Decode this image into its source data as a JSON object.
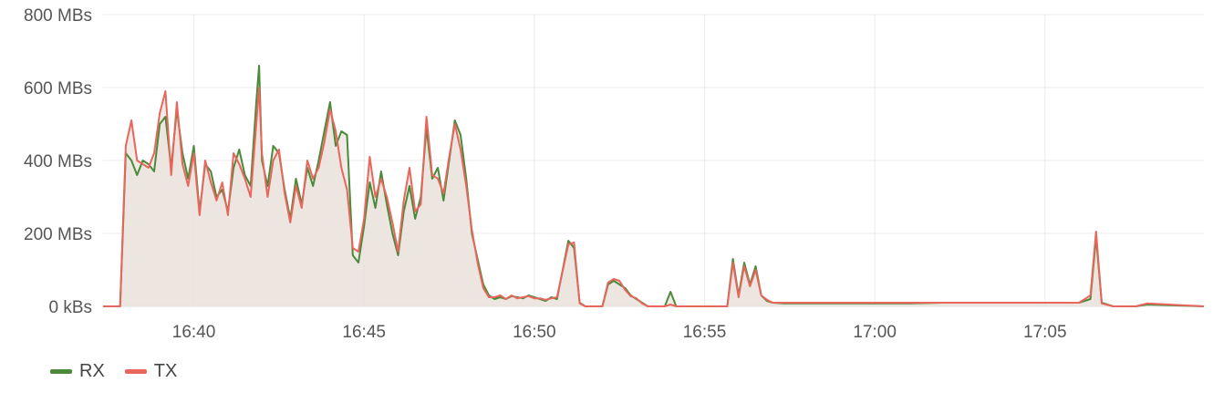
{
  "chart_data": {
    "type": "area",
    "title": "",
    "xlabel": "",
    "ylabel": "",
    "x_start": "16:37:20",
    "x_end": "17:09:40",
    "ylim": [
      0,
      800
    ],
    "y_ticks": [
      {
        "value": 0,
        "label": "0 kBs"
      },
      {
        "value": 200,
        "label": "200 MBs"
      },
      {
        "value": 400,
        "label": "400 MBs"
      },
      {
        "value": 600,
        "label": "600 MBs"
      },
      {
        "value": 800,
        "label": "800 MBs"
      }
    ],
    "x_ticks": [
      "16:40",
      "16:45",
      "16:50",
      "16:55",
      "17:00",
      "17:05"
    ],
    "grid": true,
    "legend_position": "bottom-left",
    "series": [
      {
        "name": "RX",
        "color": "#4a8a3a",
        "points": [
          [
            "16:37:20",
            0
          ],
          [
            "16:37:50",
            0
          ],
          [
            "16:38:00",
            420
          ],
          [
            "16:38:10",
            400
          ],
          [
            "16:38:20",
            360
          ],
          [
            "16:38:30",
            400
          ],
          [
            "16:38:40",
            390
          ],
          [
            "16:38:50",
            370
          ],
          [
            "16:39:00",
            500
          ],
          [
            "16:39:10",
            520
          ],
          [
            "16:39:20",
            380
          ],
          [
            "16:39:30",
            540
          ],
          [
            "16:39:40",
            420
          ],
          [
            "16:39:50",
            350
          ],
          [
            "16:40:00",
            440
          ],
          [
            "16:40:10",
            260
          ],
          [
            "16:40:20",
            390
          ],
          [
            "16:40:30",
            370
          ],
          [
            "16:40:40",
            300
          ],
          [
            "16:40:50",
            320
          ],
          [
            "16:41:00",
            260
          ],
          [
            "16:41:10",
            380
          ],
          [
            "16:41:20",
            430
          ],
          [
            "16:41:30",
            360
          ],
          [
            "16:41:40",
            330
          ],
          [
            "16:41:50",
            560
          ],
          [
            "16:41:55",
            660
          ],
          [
            "16:42:00",
            400
          ],
          [
            "16:42:10",
            330
          ],
          [
            "16:42:20",
            440
          ],
          [
            "16:42:30",
            420
          ],
          [
            "16:42:40",
            320
          ],
          [
            "16:42:50",
            240
          ],
          [
            "16:43:00",
            350
          ],
          [
            "16:43:10",
            280
          ],
          [
            "16:43:20",
            380
          ],
          [
            "16:43:30",
            330
          ],
          [
            "16:43:40",
            400
          ],
          [
            "16:43:50",
            480
          ],
          [
            "16:44:00",
            560
          ],
          [
            "16:44:10",
            440
          ],
          [
            "16:44:20",
            480
          ],
          [
            "16:44:30",
            470
          ],
          [
            "16:44:40",
            140
          ],
          [
            "16:44:50",
            120
          ],
          [
            "16:45:00",
            220
          ],
          [
            "16:45:10",
            340
          ],
          [
            "16:45:20",
            270
          ],
          [
            "16:45:30",
            370
          ],
          [
            "16:45:40",
            280
          ],
          [
            "16:45:50",
            200
          ],
          [
            "16:46:00",
            140
          ],
          [
            "16:46:10",
            260
          ],
          [
            "16:46:20",
            330
          ],
          [
            "16:46:30",
            240
          ],
          [
            "16:46:40",
            300
          ],
          [
            "16:46:50",
            490
          ],
          [
            "16:47:00",
            350
          ],
          [
            "16:47:10",
            380
          ],
          [
            "16:47:20",
            290
          ],
          [
            "16:47:30",
            400
          ],
          [
            "16:47:40",
            510
          ],
          [
            "16:47:50",
            470
          ],
          [
            "16:48:00",
            350
          ],
          [
            "16:48:10",
            200
          ],
          [
            "16:48:20",
            130
          ],
          [
            "16:48:30",
            60
          ],
          [
            "16:48:40",
            30
          ],
          [
            "16:48:50",
            20
          ],
          [
            "16:49:00",
            25
          ],
          [
            "16:49:10",
            20
          ],
          [
            "16:49:20",
            28
          ],
          [
            "16:49:30",
            25
          ],
          [
            "16:49:40",
            22
          ],
          [
            "16:49:50",
            30
          ],
          [
            "16:50:00",
            25
          ],
          [
            "16:50:10",
            20
          ],
          [
            "16:50:20",
            15
          ],
          [
            "16:50:30",
            25
          ],
          [
            "16:50:40",
            20
          ],
          [
            "16:51:00",
            180
          ],
          [
            "16:51:10",
            160
          ],
          [
            "16:51:20",
            10
          ],
          [
            "16:51:30",
            0
          ],
          [
            "16:52:00",
            0
          ],
          [
            "16:52:10",
            60
          ],
          [
            "16:52:20",
            70
          ],
          [
            "16:52:30",
            60
          ],
          [
            "16:52:40",
            50
          ],
          [
            "16:52:50",
            30
          ],
          [
            "16:53:00",
            20
          ],
          [
            "16:53:10",
            10
          ],
          [
            "16:53:20",
            0
          ],
          [
            "16:53:50",
            0
          ],
          [
            "16:54:00",
            40
          ],
          [
            "16:54:10",
            0
          ],
          [
            "16:55:40",
            0
          ],
          [
            "16:55:50",
            130
          ],
          [
            "16:56:00",
            30
          ],
          [
            "16:56:10",
            120
          ],
          [
            "16:56:20",
            60
          ],
          [
            "16:56:30",
            110
          ],
          [
            "16:56:40",
            30
          ],
          [
            "16:56:50",
            15
          ],
          [
            "16:57:00",
            10
          ],
          [
            "16:57:20",
            8
          ],
          [
            "16:58:00",
            8
          ],
          [
            "16:59:00",
            8
          ],
          [
            "17:00:00",
            8
          ],
          [
            "17:01:00",
            8
          ],
          [
            "17:02:00",
            10
          ],
          [
            "17:03:00",
            10
          ],
          [
            "17:04:00",
            10
          ],
          [
            "17:05:00",
            10
          ],
          [
            "17:06:00",
            10
          ],
          [
            "17:06:20",
            20
          ],
          [
            "17:06:30",
            190
          ],
          [
            "17:06:40",
            10
          ],
          [
            "17:07:00",
            0
          ],
          [
            "17:07:40",
            0
          ],
          [
            "17:08:00",
            5
          ],
          [
            "17:09:40",
            0
          ]
        ]
      },
      {
        "name": "TX",
        "color": "#e8665c",
        "points": [
          [
            "16:37:20",
            0
          ],
          [
            "16:37:50",
            0
          ],
          [
            "16:38:00",
            440
          ],
          [
            "16:38:10",
            510
          ],
          [
            "16:38:20",
            400
          ],
          [
            "16:38:30",
            390
          ],
          [
            "16:38:40",
            380
          ],
          [
            "16:38:50",
            420
          ],
          [
            "16:39:00",
            530
          ],
          [
            "16:39:10",
            590
          ],
          [
            "16:39:20",
            360
          ],
          [
            "16:39:30",
            560
          ],
          [
            "16:39:40",
            390
          ],
          [
            "16:39:50",
            330
          ],
          [
            "16:40:00",
            420
          ],
          [
            "16:40:10",
            250
          ],
          [
            "16:40:20",
            400
          ],
          [
            "16:40:30",
            340
          ],
          [
            "16:40:40",
            290
          ],
          [
            "16:40:50",
            340
          ],
          [
            "16:41:00",
            250
          ],
          [
            "16:41:10",
            420
          ],
          [
            "16:41:20",
            390
          ],
          [
            "16:41:30",
            350
          ],
          [
            "16:41:40",
            300
          ],
          [
            "16:41:50",
            500
          ],
          [
            "16:41:55",
            600
          ],
          [
            "16:42:00",
            420
          ],
          [
            "16:42:10",
            300
          ],
          [
            "16:42:20",
            400
          ],
          [
            "16:42:30",
            430
          ],
          [
            "16:42:40",
            310
          ],
          [
            "16:42:50",
            230
          ],
          [
            "16:43:00",
            330
          ],
          [
            "16:43:10",
            270
          ],
          [
            "16:43:20",
            400
          ],
          [
            "16:43:30",
            350
          ],
          [
            "16:43:40",
            380
          ],
          [
            "16:43:50",
            450
          ],
          [
            "16:44:00",
            540
          ],
          [
            "16:44:10",
            480
          ],
          [
            "16:44:20",
            380
          ],
          [
            "16:44:30",
            320
          ],
          [
            "16:44:40",
            160
          ],
          [
            "16:44:50",
            150
          ],
          [
            "16:45:00",
            240
          ],
          [
            "16:45:10",
            410
          ],
          [
            "16:45:20",
            300
          ],
          [
            "16:45:30",
            350
          ],
          [
            "16:45:40",
            300
          ],
          [
            "16:45:50",
            230
          ],
          [
            "16:46:00",
            150
          ],
          [
            "16:46:10",
            290
          ],
          [
            "16:46:20",
            380
          ],
          [
            "16:46:30",
            260
          ],
          [
            "16:46:40",
            280
          ],
          [
            "16:46:50",
            520
          ],
          [
            "16:47:00",
            360
          ],
          [
            "16:47:10",
            350
          ],
          [
            "16:47:20",
            310
          ],
          [
            "16:47:30",
            410
          ],
          [
            "16:47:40",
            500
          ],
          [
            "16:47:50",
            430
          ],
          [
            "16:48:00",
            330
          ],
          [
            "16:48:10",
            210
          ],
          [
            "16:48:20",
            120
          ],
          [
            "16:48:30",
            50
          ],
          [
            "16:48:40",
            25
          ],
          [
            "16:48:50",
            25
          ],
          [
            "16:49:00",
            30
          ],
          [
            "16:49:10",
            20
          ],
          [
            "16:49:20",
            30
          ],
          [
            "16:49:30",
            22
          ],
          [
            "16:49:40",
            25
          ],
          [
            "16:49:50",
            28
          ],
          [
            "16:50:00",
            22
          ],
          [
            "16:50:10",
            22
          ],
          [
            "16:50:20",
            18
          ],
          [
            "16:50:30",
            22
          ],
          [
            "16:50:40",
            25
          ],
          [
            "16:51:00",
            170
          ],
          [
            "16:51:10",
            175
          ],
          [
            "16:51:20",
            8
          ],
          [
            "16:51:30",
            0
          ],
          [
            "16:52:00",
            0
          ],
          [
            "16:52:10",
            65
          ],
          [
            "16:52:20",
            75
          ],
          [
            "16:52:30",
            70
          ],
          [
            "16:52:40",
            45
          ],
          [
            "16:52:50",
            28
          ],
          [
            "16:53:00",
            22
          ],
          [
            "16:53:10",
            8
          ],
          [
            "16:53:20",
            0
          ],
          [
            "16:53:50",
            0
          ],
          [
            "16:54:00",
            5
          ],
          [
            "16:54:10",
            0
          ],
          [
            "16:55:40",
            0
          ],
          [
            "16:55:50",
            120
          ],
          [
            "16:56:00",
            25
          ],
          [
            "16:56:10",
            110
          ],
          [
            "16:56:20",
            55
          ],
          [
            "16:56:30",
            100
          ],
          [
            "16:56:40",
            30
          ],
          [
            "16:56:50",
            18
          ],
          [
            "16:57:00",
            10
          ],
          [
            "16:57:20",
            10
          ],
          [
            "16:58:00",
            10
          ],
          [
            "16:59:00",
            10
          ],
          [
            "17:00:00",
            10
          ],
          [
            "17:01:00",
            10
          ],
          [
            "17:02:00",
            10
          ],
          [
            "17:03:00",
            10
          ],
          [
            "17:04:00",
            10
          ],
          [
            "17:05:00",
            10
          ],
          [
            "17:06:00",
            10
          ],
          [
            "17:06:20",
            30
          ],
          [
            "17:06:30",
            205
          ],
          [
            "17:06:40",
            8
          ],
          [
            "17:07:00",
            0
          ],
          [
            "17:07:40",
            0
          ],
          [
            "17:08:00",
            8
          ],
          [
            "17:09:40",
            0
          ]
        ]
      }
    ],
    "area_fill_color": "#eae3dd"
  }
}
